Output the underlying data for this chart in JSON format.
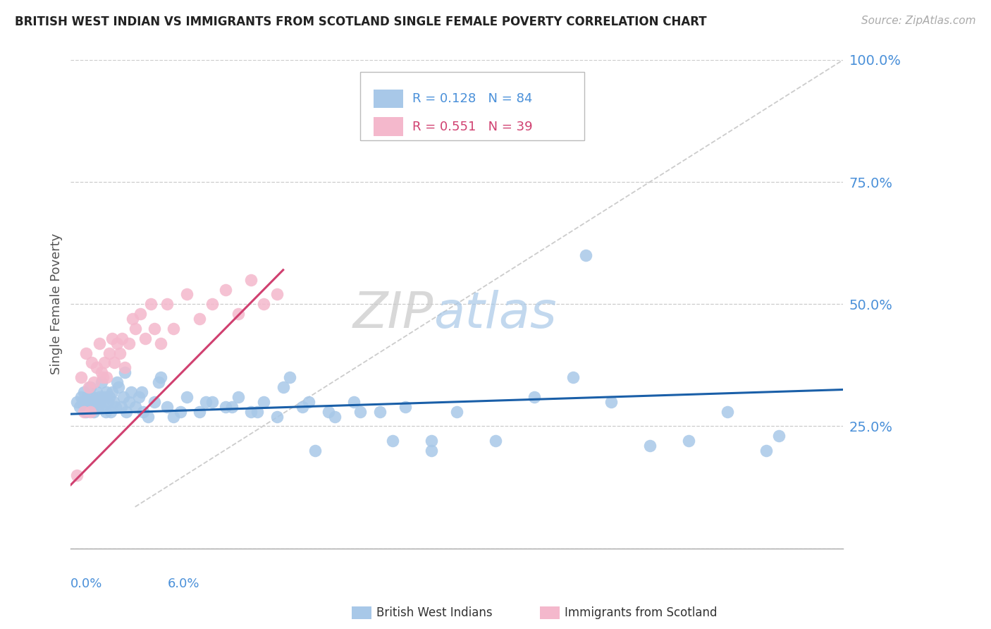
{
  "title": "BRITISH WEST INDIAN VS IMMIGRANTS FROM SCOTLAND SINGLE FEMALE POVERTY CORRELATION CHART",
  "source": "Source: ZipAtlas.com",
  "ylabel": "Single Female Poverty",
  "R1": 0.128,
  "N1": 84,
  "R2": 0.551,
  "N2": 39,
  "color_blue_scatter": "#a8c8e8",
  "color_blue_line": "#1a5fa8",
  "color_pink_scatter": "#f4b8cc",
  "color_pink_line": "#d04070",
  "color_axis_label": "#4a90d9",
  "xlim": [
    0.0,
    6.0
  ],
  "ylim": [
    0.0,
    100.0
  ],
  "ytick_positions": [
    0,
    25,
    50,
    75,
    100
  ],
  "ytick_labels": [
    "",
    "25.0%",
    "50.0%",
    "75.0%",
    "100.0%"
  ],
  "watermark_zip": "ZIP",
  "watermark_atlas": "atlas",
  "blue_scatter_x": [
    0.05,
    0.07,
    0.08,
    0.09,
    0.1,
    0.11,
    0.12,
    0.13,
    0.14,
    0.15,
    0.16,
    0.17,
    0.18,
    0.19,
    0.2,
    0.21,
    0.22,
    0.23,
    0.24,
    0.25,
    0.26,
    0.27,
    0.28,
    0.29,
    0.3,
    0.31,
    0.32,
    0.33,
    0.35,
    0.37,
    0.39,
    0.41,
    0.43,
    0.45,
    0.47,
    0.5,
    0.53,
    0.56,
    0.6,
    0.65,
    0.7,
    0.75,
    0.8,
    0.9,
    1.0,
    1.1,
    1.2,
    1.3,
    1.4,
    1.5,
    1.6,
    1.7,
    1.8,
    1.9,
    2.0,
    2.2,
    2.4,
    2.6,
    2.8,
    3.0,
    3.3,
    3.6,
    3.9,
    4.2,
    4.5,
    4.8,
    5.1,
    5.4,
    4.0,
    5.5,
    0.42,
    0.36,
    0.55,
    0.68,
    0.85,
    1.05,
    1.25,
    1.45,
    1.65,
    1.85,
    2.05,
    2.25,
    2.5,
    2.8
  ],
  "blue_scatter_y": [
    30,
    29,
    31,
    30,
    32,
    29,
    28,
    31,
    30,
    33,
    29,
    31,
    28,
    30,
    32,
    29,
    31,
    30,
    34,
    29,
    31,
    28,
    32,
    30,
    31,
    28,
    32,
    30,
    29,
    33,
    29,
    31,
    28,
    30,
    32,
    29,
    31,
    28,
    27,
    30,
    35,
    29,
    27,
    31,
    28,
    30,
    29,
    31,
    28,
    30,
    27,
    35,
    29,
    20,
    28,
    30,
    28,
    29,
    22,
    28,
    22,
    31,
    35,
    30,
    21,
    22,
    28,
    20,
    60,
    23,
    36,
    34,
    32,
    34,
    28,
    30,
    29,
    28,
    33,
    30,
    27,
    28,
    22,
    20
  ],
  "pink_scatter_x": [
    0.05,
    0.08,
    0.1,
    0.12,
    0.14,
    0.16,
    0.18,
    0.2,
    0.22,
    0.24,
    0.26,
    0.28,
    0.3,
    0.32,
    0.34,
    0.36,
    0.38,
    0.4,
    0.42,
    0.45,
    0.48,
    0.5,
    0.54,
    0.58,
    0.62,
    0.65,
    0.7,
    0.75,
    0.8,
    0.9,
    1.0,
    1.1,
    1.2,
    1.3,
    1.4,
    1.5,
    1.6,
    0.15,
    0.25
  ],
  "pink_scatter_y": [
    15,
    35,
    28,
    40,
    33,
    38,
    34,
    37,
    42,
    36,
    38,
    35,
    40,
    43,
    38,
    42,
    40,
    43,
    37,
    42,
    47,
    45,
    48,
    43,
    50,
    45,
    42,
    50,
    45,
    52,
    47,
    50,
    53,
    48,
    55,
    50,
    52,
    28,
    35
  ],
  "blue_line_x": [
    0.0,
    6.0
  ],
  "blue_line_y": [
    27.5,
    32.5
  ],
  "pink_line_x": [
    0.0,
    1.65
  ],
  "pink_line_y": [
    13.0,
    57.0
  ],
  "diag_line_x": [
    0.5,
    6.0
  ],
  "diag_line_y": [
    8.5,
    100.0
  ]
}
